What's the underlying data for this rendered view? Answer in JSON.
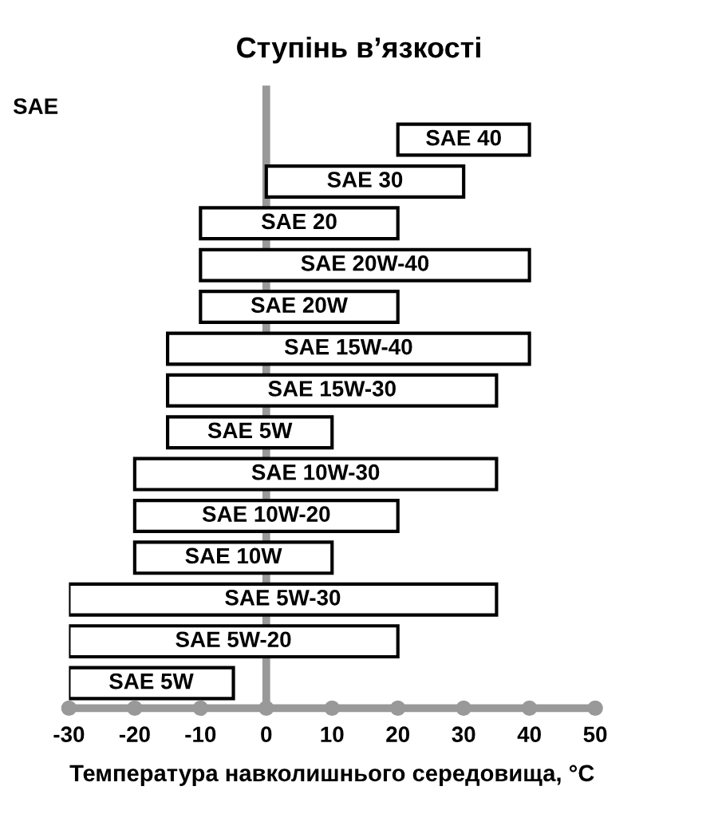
{
  "chart_data": {
    "type": "bar",
    "orientation": "horizontal",
    "title": "Ступінь в’язкості",
    "xlabel": "Температура навколишнього середовища, °C",
    "categories": [
      "SAE 40",
      "SAE 30",
      "SAE 20",
      "SAE 20W-40",
      "SAE 20W",
      "SAE 15W-40",
      "SAE 15W-30",
      "SAE 5W",
      "SAE 10W-30",
      "SAE 10W-20",
      "SAE 10W",
      "SAE 5W-30",
      "SAE 5W-20",
      "SAE 5W"
    ],
    "base": [
      20,
      0,
      -10,
      -10,
      -10,
      -15,
      -15,
      -15,
      -20,
      -20,
      -20,
      -30,
      -30,
      -30
    ],
    "values": [
      20,
      30,
      30,
      50,
      30,
      55,
      50,
      25,
      55,
      40,
      30,
      65,
      50,
      25
    ],
    "color": "#ffffff",
    "xlim": [
      -30,
      50
    ],
    "xticks": [
      -30,
      -20,
      -10,
      0,
      10,
      20,
      30,
      40,
      50
    ],
    "ylabel": "SAE",
    "grid": false,
    "tick_labels": "x"
  }
}
